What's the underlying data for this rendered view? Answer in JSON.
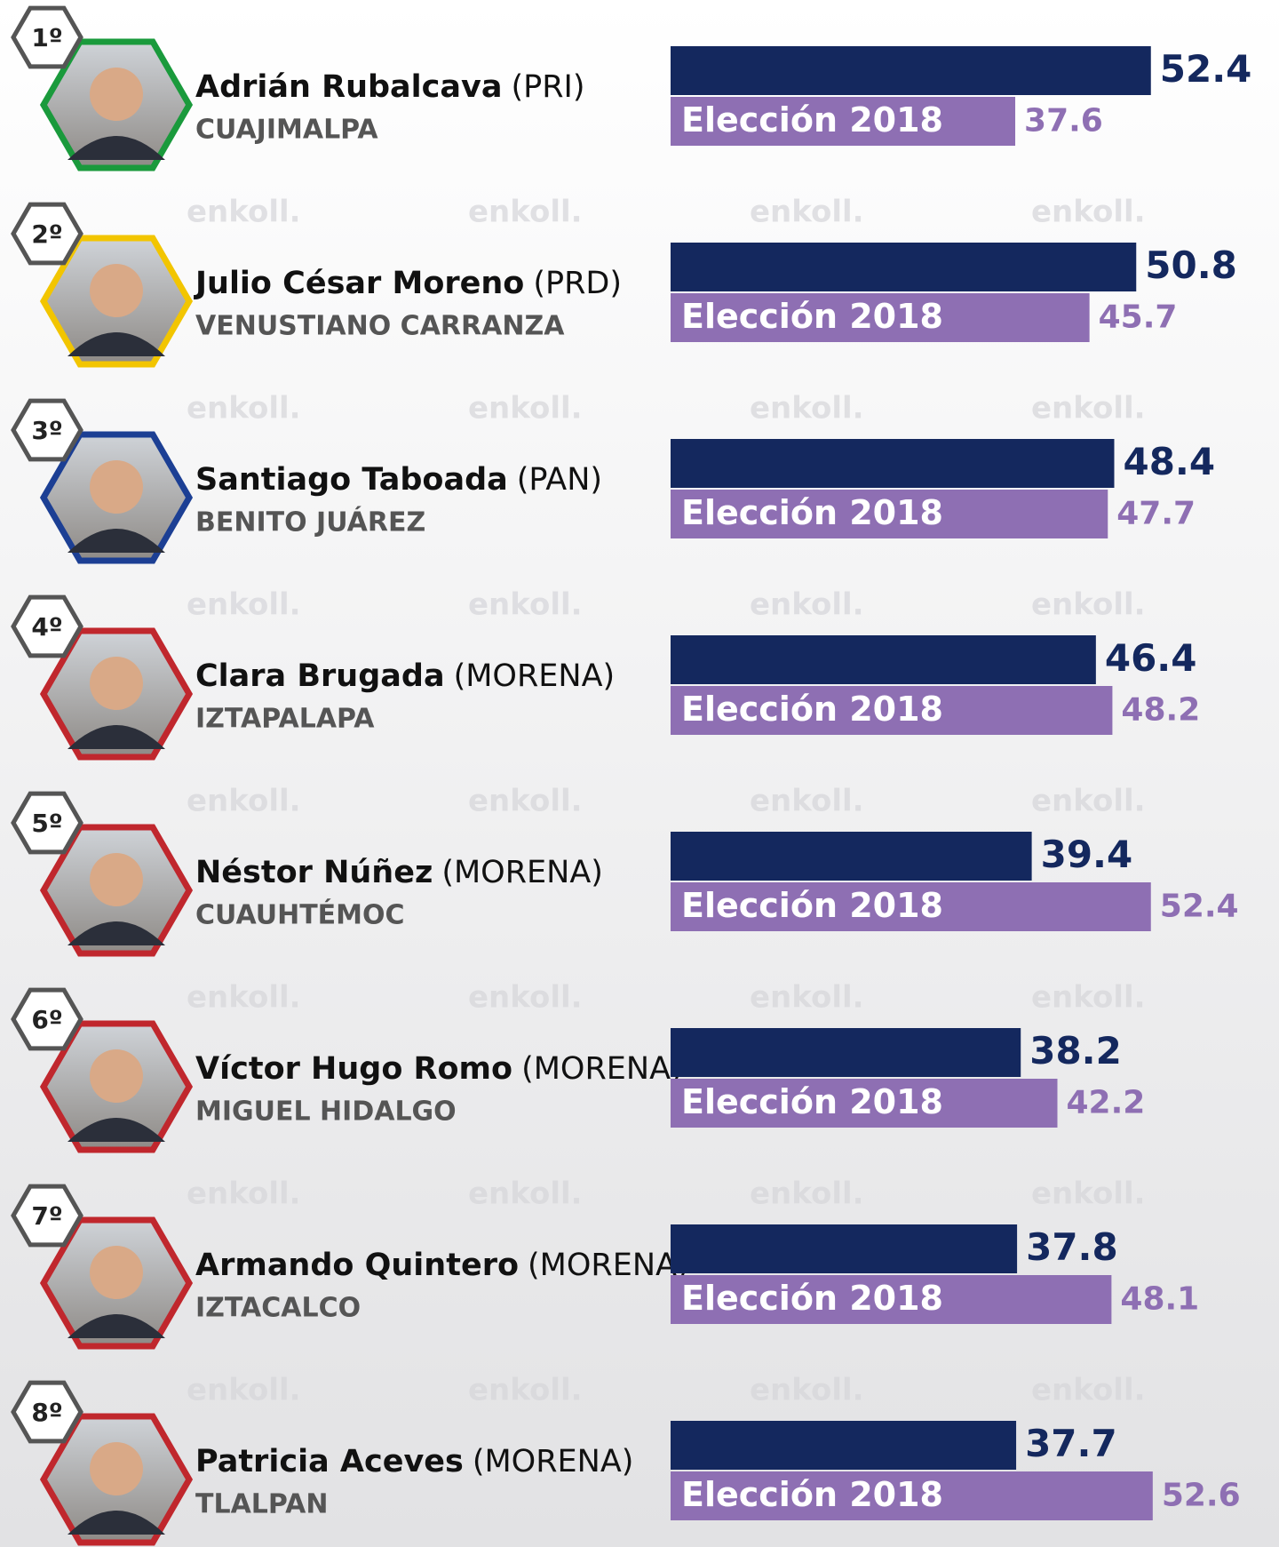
{
  "chart_data": {
    "type": "bar",
    "ranks": [
      "1º",
      "2º",
      "3º",
      "4º",
      "5º",
      "6º",
      "7º",
      "8º"
    ],
    "categories": [
      "Adrián Rubalcava",
      "Julio César Moreno",
      "Santiago Taboada",
      "Clara Brugada",
      "Néstor Núñez",
      "Víctor Hugo Romo",
      "Armando Quintero",
      "Patricia Aceves"
    ],
    "parties": [
      "(PRI)",
      "(PRD)",
      "(PAN)",
      "(MORENA)",
      "(MORENA)",
      "(MORENA)",
      "(MORENA)",
      "(MORENA)"
    ],
    "districts": [
      "CUAJIMALPA",
      "VENUSTIANO CARRANZA",
      "BENITO JUÁREZ",
      "IZTAPALAPA",
      "CUAUHTÉMOC",
      "MIGUEL HIDALGO",
      "IZTACALCO",
      "TLALPAN"
    ],
    "frame_colors": [
      "#1a9a3c",
      "#f2c500",
      "#1c3f94",
      "#c0272d",
      "#c0272d",
      "#c0272d",
      "#c0272d",
      "#c0272d"
    ],
    "series": [
      {
        "color": "#14285e",
        "values": [
          52.4,
          50.8,
          48.4,
          46.4,
          39.4,
          38.2,
          37.8,
          37.7
        ]
      },
      {
        "name": "Elección 2018",
        "color": "#8e6fb3",
        "values": [
          37.6,
          45.7,
          47.7,
          48.2,
          52.4,
          42.2,
          48.1,
          52.6
        ]
      }
    ],
    "watermark": "enkoll."
  }
}
